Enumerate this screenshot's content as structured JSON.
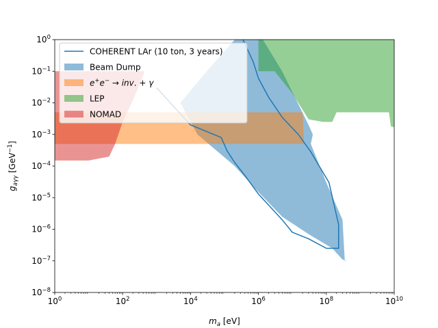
{
  "chart_data": {
    "type": "area",
    "xscale": "log",
    "yscale": "log",
    "xlim": [
      1,
      10000000000
    ],
    "ylim": [
      1e-08,
      1
    ],
    "xlabel": {
      "sym": "m",
      "sub": "a",
      "unit": " [eV]"
    },
    "ylabel": {
      "sym": "g",
      "sub": "aγγ",
      "unit": " [GeV",
      "sup": "−1",
      "close": "]"
    },
    "x_ticks": [
      {
        "value": 1,
        "base": "10",
        "exp": "0"
      },
      {
        "value": 100,
        "base": "10",
        "exp": "2"
      },
      {
        "value": 10000,
        "base": "10",
        "exp": "4"
      },
      {
        "value": 1000000,
        "base": "10",
        "exp": "6"
      },
      {
        "value": 100000000,
        "base": "10",
        "exp": "8"
      },
      {
        "value": 10000000000,
        "base": "10",
        "exp": "10"
      }
    ],
    "y_ticks": [
      {
        "value": 1e-08,
        "base": "10",
        "exp": "−8"
      },
      {
        "value": 1e-07,
        "base": "10",
        "exp": "−7"
      },
      {
        "value": 1e-06,
        "base": "10",
        "exp": "−6"
      },
      {
        "value": 1e-05,
        "base": "10",
        "exp": "−5"
      },
      {
        "value": 0.0001,
        "base": "10",
        "exp": "−4"
      },
      {
        "value": 0.001,
        "base": "10",
        "exp": "−3"
      },
      {
        "value": 0.01,
        "base": "10",
        "exp": "−2"
      },
      {
        "value": 0.1,
        "base": "10",
        "exp": "−1"
      },
      {
        "value": 1,
        "base": "10",
        "exp": "0"
      }
    ],
    "legend_position": "top-left",
    "series": [
      {
        "name": "Beam Dump",
        "kind": "fill",
        "color": "#1f77b4",
        "opacity": 0.5,
        "points": [
          [
            200000.0,
            1
          ],
          [
            1350000.0,
            1
          ],
          [
            5000000.0,
            0.1
          ],
          [
            30000000.0,
            0.002
          ],
          [
            40000000.0,
            0.001
          ],
          [
            35000000.0,
            0.0005
          ],
          [
            100000000.0,
            3e-05
          ],
          [
            300000000.0,
            2e-06
          ],
          [
            350000000.0,
            1e-07
          ],
          [
            400000000.0,
            1e-07
          ],
          [
            300000000.0,
            1.1e-07
          ],
          [
            150000000.0,
            2.5e-07
          ],
          [
            30000000.0,
            7e-07
          ],
          [
            5000000.0,
            2.5e-06
          ],
          [
            1000000.0,
            1.5e-05
          ],
          [
            200000.0,
            0.0001
          ],
          [
            16000.0,
            0.001
          ],
          [
            5000.0,
            0.01
          ],
          [
            30000.0,
            0.1
          ]
        ]
      },
      {
        "name": "e⁺e⁻ → inv. + γ",
        "kind": "fill",
        "color": "#ff7f0e",
        "opacity": 0.5,
        "points": [
          [
            1,
            0.005
          ],
          [
            20000000.0,
            0.005
          ],
          [
            22000000.0,
            0.0005
          ],
          [
            1,
            0.0005
          ]
        ]
      },
      {
        "name": "LEP",
        "kind": "fill",
        "color": "#2ca02c",
        "opacity": 0.5,
        "points": [
          [
            1000000.0,
            1
          ],
          [
            10000000000.0,
            1
          ],
          [
            10000000000.0,
            0.0017
          ],
          [
            8000000000.0,
            0.0018
          ],
          [
            7000000000.0,
            0.005
          ],
          [
            200000000.0,
            0.005
          ],
          [
            150000000.0,
            0.0025
          ],
          [
            80000000.0,
            0.0025
          ],
          [
            30000000.0,
            0.003
          ],
          [
            10000000.0,
            0.02
          ],
          [
            3000000.0,
            0.1
          ],
          [
            1000000.0,
            0.1
          ]
        ]
      },
      {
        "name": "NOMAD",
        "kind": "fill",
        "color": "#d62728",
        "opacity": 0.5,
        "points": [
          [
            1,
            0.00015
          ],
          [
            10,
            0.00015
          ],
          [
            40,
            0.0002
          ],
          [
            60,
            0.0005
          ],
          [
            100,
            0.0025
          ],
          [
            200,
            0.012
          ],
          [
            350,
            0.05
          ],
          [
            450,
            0.1
          ],
          [
            1,
            0.1
          ]
        ]
      },
      {
        "name": "COHERENT LAr (10 ton, 3 years)",
        "kind": "line",
        "color": "#1f77b4",
        "points": [
          [
            1000.0,
            0.03
          ],
          [
            10000.0,
            0.002
          ],
          [
            80000.0,
            0.0008
          ],
          [
            120000.0,
            0.0003
          ],
          [
            200000.0,
            0.00013
          ],
          [
            400000.0,
            5e-05
          ],
          [
            1000000.0,
            1.3e-05
          ],
          [
            5000000.0,
            2e-06
          ],
          [
            10000000.0,
            8e-07
          ],
          [
            30000000.0,
            5e-07
          ],
          [
            100000000.0,
            2.5e-07
          ],
          [
            230000000.0,
            2.5e-07
          ],
          [
            230000000.0,
            1.4e-06
          ],
          [
            120000000.0,
            3e-05
          ],
          [
            35000000.0,
            0.00028
          ],
          [
            15000000.0,
            0.001
          ],
          [
            5000000.0,
            0.0035
          ],
          [
            2000000.0,
            0.015
          ],
          [
            1000000.0,
            0.06
          ],
          [
            700000.0,
            0.2
          ],
          [
            350000.0,
            1
          ]
        ]
      }
    ],
    "legend_order": [
      "COHERENT LAr (10 ton, 3 years)",
      "Beam Dump",
      "e⁺e⁻ → inv. + γ",
      "LEP",
      "NOMAD"
    ]
  }
}
